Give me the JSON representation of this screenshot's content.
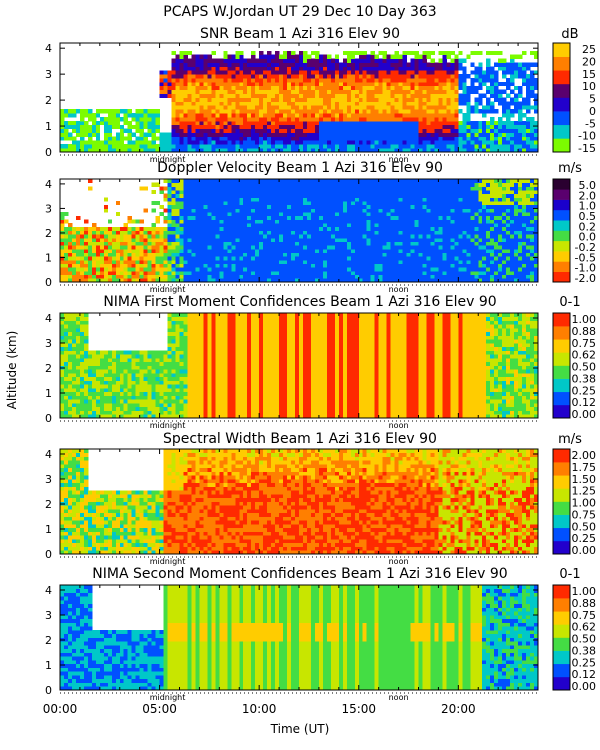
{
  "figure_title": "PCAPS W.Jordan UT  29 Dec 10 Day 363",
  "shared_ylabel": "Altitude (km)",
  "shared_xlabel": "Time (UT)",
  "x_tick_labels": [
    "00:00",
    "05:00",
    "10:00",
    "15:00",
    "20:00"
  ],
  "time_markers": [
    "midnight",
    "noon"
  ],
  "chart_data": [
    {
      "type": "heatmap",
      "title": "SNR Beam 1 Azi 316 Elev 90",
      "units": "dB",
      "xlabel": "Time (UT)",
      "ylabel": "Altitude (km)",
      "xlim": [
        0,
        24
      ],
      "ylim": [
        0,
        4.2
      ],
      "y_ticks": [
        0,
        1,
        2,
        3,
        4
      ],
      "colorbar_ticks": [
        "25",
        "20",
        "15",
        "10",
        "5",
        "0",
        "-5",
        "-10",
        "-15"
      ],
      "colors": [
        "#7cfc00",
        "#00c8c8",
        "#0050ff",
        "#2200cc",
        "#5a006e",
        "#ff2a00",
        "#ff7f00",
        "#ffcc00"
      ]
    },
    {
      "type": "heatmap",
      "title": "Doppler Velocity Beam 1 Azi 316 Elev 90",
      "units": "m/s",
      "xlabel": "Time (UT)",
      "ylabel": "Altitude (km)",
      "xlim": [
        0,
        24
      ],
      "ylim": [
        0,
        4.2
      ],
      "y_ticks": [
        0,
        1,
        2,
        3,
        4
      ],
      "colorbar_ticks": [
        "5.0",
        "2.0",
        "1.0",
        "0.5",
        "0.2",
        "0.0",
        "-0.2",
        "-0.5",
        "-1.0",
        "-2.0"
      ],
      "colors": [
        "#ff2a00",
        "#ff7f00",
        "#ffcc00",
        "#c8e600",
        "#44dd44",
        "#00c8c8",
        "#0050ff",
        "#1a00cc",
        "#5a006e",
        "#2a0030"
      ]
    },
    {
      "type": "heatmap",
      "title": "NIMA First Moment Confidences Beam 1 Azi 316 Elev 90",
      "units": "0-1",
      "xlabel": "Time (UT)",
      "ylabel": "Altitude (km)",
      "xlim": [
        0,
        24
      ],
      "ylim": [
        0,
        4.2
      ],
      "y_ticks": [
        0,
        1,
        2,
        3,
        4
      ],
      "colorbar_ticks": [
        "1.00",
        "0.88",
        "0.75",
        "0.62",
        "0.50",
        "0.38",
        "0.25",
        "0.12",
        "0.00"
      ],
      "colors": [
        "#2200cc",
        "#0050ff",
        "#00c8c8",
        "#44dd44",
        "#c8e600",
        "#ffcc00",
        "#ff7f00",
        "#ff2a00"
      ]
    },
    {
      "type": "heatmap",
      "title": "Spectral Width Beam 1 Azi 316 Elev 90",
      "units": "m/s",
      "xlabel": "Time (UT)",
      "ylabel": "Altitude (km)",
      "xlim": [
        0,
        24
      ],
      "ylim": [
        0,
        4.2
      ],
      "y_ticks": [
        0,
        1,
        2,
        3,
        4
      ],
      "colorbar_ticks": [
        "2.00",
        "1.75",
        "1.50",
        "1.25",
        "1.00",
        "0.75",
        "0.50",
        "0.25",
        "0.00"
      ],
      "colors": [
        "#2200cc",
        "#0050ff",
        "#00c8c8",
        "#44dd44",
        "#c8e600",
        "#ffcc00",
        "#ff7f00",
        "#ff2a00"
      ]
    },
    {
      "type": "heatmap",
      "title": "NIMA Second Moment Confidences Beam 1 Azi 316 Elev 90",
      "units": "0-1",
      "xlabel": "Time (UT)",
      "ylabel": "Altitude (km)",
      "xlim": [
        0,
        24
      ],
      "ylim": [
        0,
        4.2
      ],
      "y_ticks": [
        0,
        1,
        2,
        3,
        4
      ],
      "colorbar_ticks": [
        "1.00",
        "0.88",
        "0.75",
        "0.62",
        "0.50",
        "0.38",
        "0.25",
        "0.12",
        "0.00"
      ],
      "colors": [
        "#2200cc",
        "#0050ff",
        "#00c8c8",
        "#44dd44",
        "#c8e600",
        "#ffcc00",
        "#ff7f00",
        "#ff2a00"
      ]
    }
  ]
}
